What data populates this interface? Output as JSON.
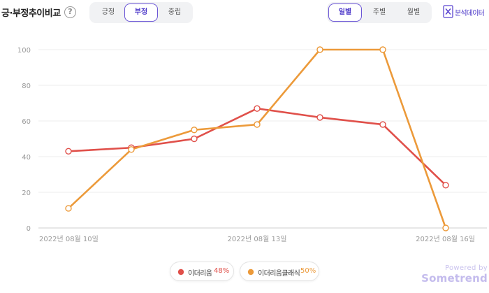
{
  "header": {
    "title": "긍·부정추이비교",
    "help_icon": "?",
    "sentiment_tabs": [
      {
        "label": "긍정",
        "active": false
      },
      {
        "label": "부정",
        "active": true
      },
      {
        "label": "중립",
        "active": false
      }
    ],
    "period_tabs": [
      {
        "label": "일별",
        "active": true
      },
      {
        "label": "주별",
        "active": false
      },
      {
        "label": "월별",
        "active": false
      }
    ],
    "excel_label": "분석데이터",
    "excel_icon": "excel-icon",
    "accent_color": "#5b45d0"
  },
  "chart_data": {
    "type": "line",
    "x": [
      "2022-08-10",
      "2022-08-11",
      "2022-08-12",
      "2022-08-13",
      "2022-08-14",
      "2022-08-15",
      "2022-08-16"
    ],
    "x_tick_labels": [
      {
        "index": 0,
        "label": "2022년 08월 10일"
      },
      {
        "index": 3,
        "label": "2022년 08월 13일"
      },
      {
        "index": 6,
        "label": "2022년 08월 16일"
      }
    ],
    "ylim": [
      0,
      100
    ],
    "yticks": [
      0,
      20,
      40,
      60,
      80,
      100
    ],
    "grid": true,
    "legend_position": "bottom-center",
    "series": [
      {
        "name": "이더리움",
        "percent": "48%",
        "color": "#e0504a",
        "values": [
          43,
          45,
          50,
          67,
          62,
          58,
          24
        ]
      },
      {
        "name": "이더리움클래식",
        "percent": "50%",
        "color": "#ec9a3a",
        "values": [
          11,
          44,
          55,
          58,
          100,
          100,
          0
        ]
      }
    ]
  },
  "footer": {
    "powered_by": "Powered by",
    "brand": "Sometrend"
  }
}
